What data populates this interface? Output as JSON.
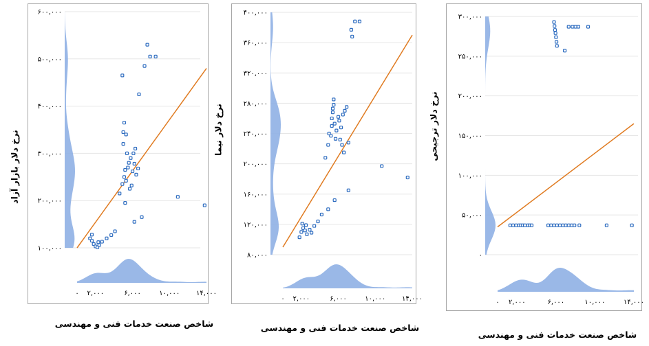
{
  "chart_data": [
    {
      "type": "scatter",
      "ylabel": "نرخ دلار بازار آزاد",
      "xlabel": "شاخص صنعت خدمات فنی و مهندسی",
      "y_ticks": [
        "۱۰۰,۰۰۰",
        "۲۰۰,۰۰۰",
        "۳۰۰,۰۰۰",
        "۴۰۰,۰۰۰",
        "۵۰۰,۰۰۰",
        "۶۰۰,۰۰۰"
      ],
      "y_tick_values": [
        100000,
        200000,
        300000,
        400000,
        500000,
        600000
      ],
      "x_ticks": [
        "۰",
        "۲,۰۰۰",
        "۶,۰۰۰",
        "۱۰,۰۰۰",
        "۱۴,۰۰۰"
      ],
      "x_tick_values": [
        0,
        2000,
        6000,
        10000,
        14000
      ],
      "xlim": [
        0,
        14000
      ],
      "ylim": [
        100000,
        600000
      ],
      "trend": {
        "x1": 0,
        "y1": 100000,
        "x2": 14000,
        "y2": 480000
      },
      "points": [
        {
          "x": 1400,
          "y": 120000
        },
        {
          "x": 1600,
          "y": 115000
        },
        {
          "x": 1800,
          "y": 108000
        },
        {
          "x": 2000,
          "y": 103000
        },
        {
          "x": 2200,
          "y": 101000
        },
        {
          "x": 2400,
          "y": 106000
        },
        {
          "x": 2700,
          "y": 113000
        },
        {
          "x": 3200,
          "y": 120000
        },
        {
          "x": 3700,
          "y": 127000
        },
        {
          "x": 4100,
          "y": 135000
        },
        {
          "x": 1600,
          "y": 128000
        },
        {
          "x": 2300,
          "y": 112000
        },
        {
          "x": 4600,
          "y": 215000
        },
        {
          "x": 4900,
          "y": 235000
        },
        {
          "x": 5100,
          "y": 250000
        },
        {
          "x": 5300,
          "y": 242000
        },
        {
          "x": 5500,
          "y": 270000
        },
        {
          "x": 5700,
          "y": 225000
        },
        {
          "x": 5900,
          "y": 232000
        },
        {
          "x": 6000,
          "y": 262000
        },
        {
          "x": 6200,
          "y": 278000
        },
        {
          "x": 6400,
          "y": 255000
        },
        {
          "x": 5200,
          "y": 265000
        },
        {
          "x": 5800,
          "y": 290000
        },
        {
          "x": 6600,
          "y": 268000
        },
        {
          "x": 5000,
          "y": 320000
        },
        {
          "x": 5000,
          "y": 345000
        },
        {
          "x": 5100,
          "y": 365000
        },
        {
          "x": 5300,
          "y": 340000
        },
        {
          "x": 5400,
          "y": 300000
        },
        {
          "x": 6100,
          "y": 300000
        },
        {
          "x": 5600,
          "y": 280000
        },
        {
          "x": 6300,
          "y": 310000
        },
        {
          "x": 5200,
          "y": 195000
        },
        {
          "x": 6200,
          "y": 155000
        },
        {
          "x": 7000,
          "y": 165000
        },
        {
          "x": 4900,
          "y": 465000
        },
        {
          "x": 6700,
          "y": 425000
        },
        {
          "x": 7300,
          "y": 485000
        },
        {
          "x": 7900,
          "y": 505000
        },
        {
          "x": 7600,
          "y": 530000
        },
        {
          "x": 8500,
          "y": 505000
        },
        {
          "x": 10900,
          "y": 208000
        },
        {
          "x": 13800,
          "y": 190000
        }
      ]
    },
    {
      "type": "scatter",
      "ylabel": "نرخ دلار نیما",
      "xlabel": "شاخص صنعت خدمات فنی و مهندسی",
      "y_ticks": [
        "۸۰,۰۰۰",
        "۱۲۰,۰۰۰",
        "۱۶۰,۰۰۰",
        "۲۰۰,۰۰۰",
        "۲۴۰,۰۰۰",
        "۲۸۰,۰۰۰",
        "۳۲۰,۰۰۰",
        "۳۶۰,۰۰۰",
        "۴۰۰,۰۰۰"
      ],
      "y_tick_values": [
        80000,
        120000,
        160000,
        200000,
        240000,
        280000,
        320000,
        360000,
        400000
      ],
      "x_ticks": [
        "۰",
        "۲,۰۰۰",
        "۶,۰۰۰",
        "۱۰,۰۰۰",
        "۱۴,۰۰۰"
      ],
      "x_tick_values": [
        0,
        2000,
        6000,
        10000,
        14000
      ],
      "xlim": [
        0,
        14000
      ],
      "ylim": [
        80000,
        400000
      ],
      "trend": {
        "x1": 0,
        "y1": 90000,
        "x2": 14000,
        "y2": 370000
      },
      "points": [
        {
          "x": 1800,
          "y": 103000
        },
        {
          "x": 2000,
          "y": 110000
        },
        {
          "x": 2200,
          "y": 115000
        },
        {
          "x": 2400,
          "y": 112000
        },
        {
          "x": 2600,
          "y": 107000
        },
        {
          "x": 2900,
          "y": 113000
        },
        {
          "x": 3100,
          "y": 109000
        },
        {
          "x": 3400,
          "y": 118000
        },
        {
          "x": 3800,
          "y": 124000
        },
        {
          "x": 4200,
          "y": 133000
        },
        {
          "x": 2100,
          "y": 121000
        },
        {
          "x": 2500,
          "y": 119000
        },
        {
          "x": 4900,
          "y": 140000
        },
        {
          "x": 5600,
          "y": 152000
        },
        {
          "x": 7100,
          "y": 165000
        },
        {
          "x": 4600,
          "y": 208000
        },
        {
          "x": 4900,
          "y": 225000
        },
        {
          "x": 5000,
          "y": 240000
        },
        {
          "x": 5200,
          "y": 237000
        },
        {
          "x": 5300,
          "y": 260000
        },
        {
          "x": 5400,
          "y": 273000
        },
        {
          "x": 5500,
          "y": 285000
        },
        {
          "x": 5600,
          "y": 253000
        },
        {
          "x": 5700,
          "y": 233000
        },
        {
          "x": 5800,
          "y": 244000
        },
        {
          "x": 6000,
          "y": 262000
        },
        {
          "x": 6100,
          "y": 257000
        },
        {
          "x": 6200,
          "y": 232000
        },
        {
          "x": 6300,
          "y": 248000
        },
        {
          "x": 6500,
          "y": 265000
        },
        {
          "x": 6700,
          "y": 270000
        },
        {
          "x": 6900,
          "y": 275000
        },
        {
          "x": 6400,
          "y": 225000
        },
        {
          "x": 6600,
          "y": 215000
        },
        {
          "x": 5400,
          "y": 268000
        },
        {
          "x": 5500,
          "y": 278000
        },
        {
          "x": 5300,
          "y": 250000
        },
        {
          "x": 7100,
          "y": 228000
        },
        {
          "x": 7500,
          "y": 368000
        },
        {
          "x": 7400,
          "y": 377000
        },
        {
          "x": 7800,
          "y": 388000
        },
        {
          "x": 8300,
          "y": 388000
        },
        {
          "x": 10700,
          "y": 197000
        },
        {
          "x": 13500,
          "y": 182000
        }
      ]
    },
    {
      "type": "scatter",
      "ylabel": "نرخ دلار ترجیحی",
      "xlabel": "شاخص صنعت خدمات فنی و مهندسی",
      "y_ticks": [
        "۰",
        "۵۰,۰۰۰",
        "۱۰۰,۰۰۰",
        "۱۵۰,۰۰۰",
        "۲۰۰,۰۰۰",
        "۲۵۰,۰۰۰",
        "۳۰۰,۰۰۰"
      ],
      "y_tick_values": [
        0,
        50000,
        100000,
        150000,
        200000,
        250000,
        300000
      ],
      "x_ticks": [
        "۰",
        "۲,۰۰۰",
        "۶,۰۰۰",
        "۱۰,۰۰۰",
        "۱۴,۰۰۰"
      ],
      "x_tick_values": [
        0,
        2000,
        6000,
        10000,
        14000
      ],
      "xlim": [
        0,
        14000
      ],
      "ylim": [
        0,
        300000
      ],
      "trend": {
        "x1": 0,
        "y1": 35000,
        "x2": 14000,
        "y2": 165000
      },
      "points": [
        {
          "x": 1300,
          "y": 37000
        },
        {
          "x": 1600,
          "y": 37000
        },
        {
          "x": 1900,
          "y": 37000
        },
        {
          "x": 2200,
          "y": 37000
        },
        {
          "x": 2400,
          "y": 37000
        },
        {
          "x": 2600,
          "y": 37000
        },
        {
          "x": 2800,
          "y": 37000
        },
        {
          "x": 3100,
          "y": 37000
        },
        {
          "x": 3300,
          "y": 37000
        },
        {
          "x": 3500,
          "y": 37000
        },
        {
          "x": 5200,
          "y": 37000
        },
        {
          "x": 5500,
          "y": 37000
        },
        {
          "x": 5800,
          "y": 37000
        },
        {
          "x": 6100,
          "y": 37000
        },
        {
          "x": 6400,
          "y": 37000
        },
        {
          "x": 6700,
          "y": 37000
        },
        {
          "x": 7000,
          "y": 37000
        },
        {
          "x": 7300,
          "y": 37000
        },
        {
          "x": 7600,
          "y": 37000
        },
        {
          "x": 7900,
          "y": 37000
        },
        {
          "x": 8400,
          "y": 37000
        },
        {
          "x": 11200,
          "y": 37000
        },
        {
          "x": 13800,
          "y": 37000
        },
        {
          "x": 5800,
          "y": 293000
        },
        {
          "x": 5850,
          "y": 288000
        },
        {
          "x": 5900,
          "y": 283000
        },
        {
          "x": 5950,
          "y": 279000
        },
        {
          "x": 6000,
          "y": 274000
        },
        {
          "x": 6050,
          "y": 268000
        },
        {
          "x": 6100,
          "y": 263000
        },
        {
          "x": 6900,
          "y": 257000
        },
        {
          "x": 7300,
          "y": 287000
        },
        {
          "x": 7700,
          "y": 287000
        },
        {
          "x": 8000,
          "y": 287000
        },
        {
          "x": 8300,
          "y": 287000
        },
        {
          "x": 9300,
          "y": 287000
        }
      ]
    }
  ]
}
